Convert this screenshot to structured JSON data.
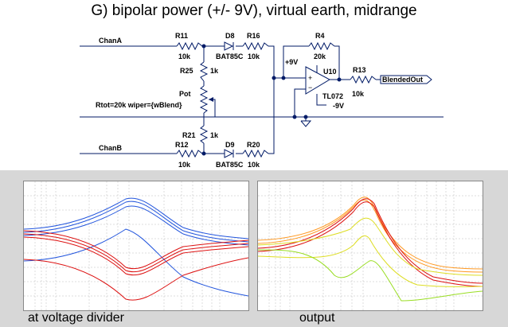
{
  "title": "G) bipolar power (+/- 9V), virtual earth, midrange",
  "schematic": {
    "net_chanA": "ChanA",
    "net_chanB": "ChanB",
    "r11": "R11",
    "r11_val": "10k",
    "d8": "D8",
    "d8_val": "BAT85C",
    "r16": "R16",
    "r16_val": "10k",
    "r4": "R4",
    "r4_val": "20k",
    "r25": "R25",
    "r25_val": "1k",
    "pot": "Pot",
    "pot_param": "Rtot=20k wiper={wBlend}",
    "r21": "R21",
    "r21_val": "1k",
    "r12": "R12",
    "r12_val": "10k",
    "d9": "D9",
    "d9_val": "BAT85C",
    "r20": "R20",
    "r20_val": "10k",
    "u10": "U10",
    "u10_part": "TL072",
    "vpos": "+9V",
    "vneg": "-9V",
    "r13": "R13",
    "r13_val": "10k",
    "out_label": "BlendedOut"
  },
  "captions": {
    "left": "at voltage divider",
    "right": "output"
  },
  "colors": {
    "red": "#dd1111",
    "blue": "#2255dd",
    "yellow": "#dddd22",
    "green": "#99dd22",
    "orange": "#ff9922",
    "wire": "#001a66",
    "panel": "#d7d7d7"
  }
}
